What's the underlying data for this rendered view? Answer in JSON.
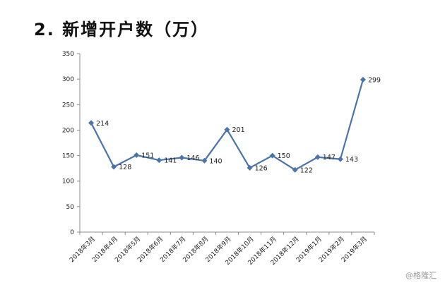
{
  "heading": "2. 新增开户数（万）",
  "watermark": "格隆汇",
  "watermark_icon": "at-sign-icon",
  "colors": {
    "line": "#4a74ac",
    "axis": "#8c8c8c",
    "text": "#222222"
  },
  "chart_data": {
    "type": "line",
    "title": "2. 新增开户数（万）",
    "xlabel": "",
    "ylabel": "",
    "categories": [
      "2018年3月",
      "2018年4月",
      "2018年5月",
      "2018年6月",
      "2018年7月",
      "2018年8月",
      "2018年9月",
      "2018年10月",
      "2018年11月",
      "2018年12月",
      "2019年1月",
      "2019年2月",
      "2019年3月"
    ],
    "series": [
      {
        "values": [
          214,
          128,
          151,
          141,
          146,
          140,
          201,
          126,
          150,
          122,
          147,
          143,
          299
        ]
      }
    ],
    "ylim": [
      0,
      350
    ],
    "yticks": [
      0,
      50,
      100,
      150,
      200,
      250,
      300,
      350
    ],
    "grid": false,
    "legend": "none",
    "data_labels": true
  }
}
